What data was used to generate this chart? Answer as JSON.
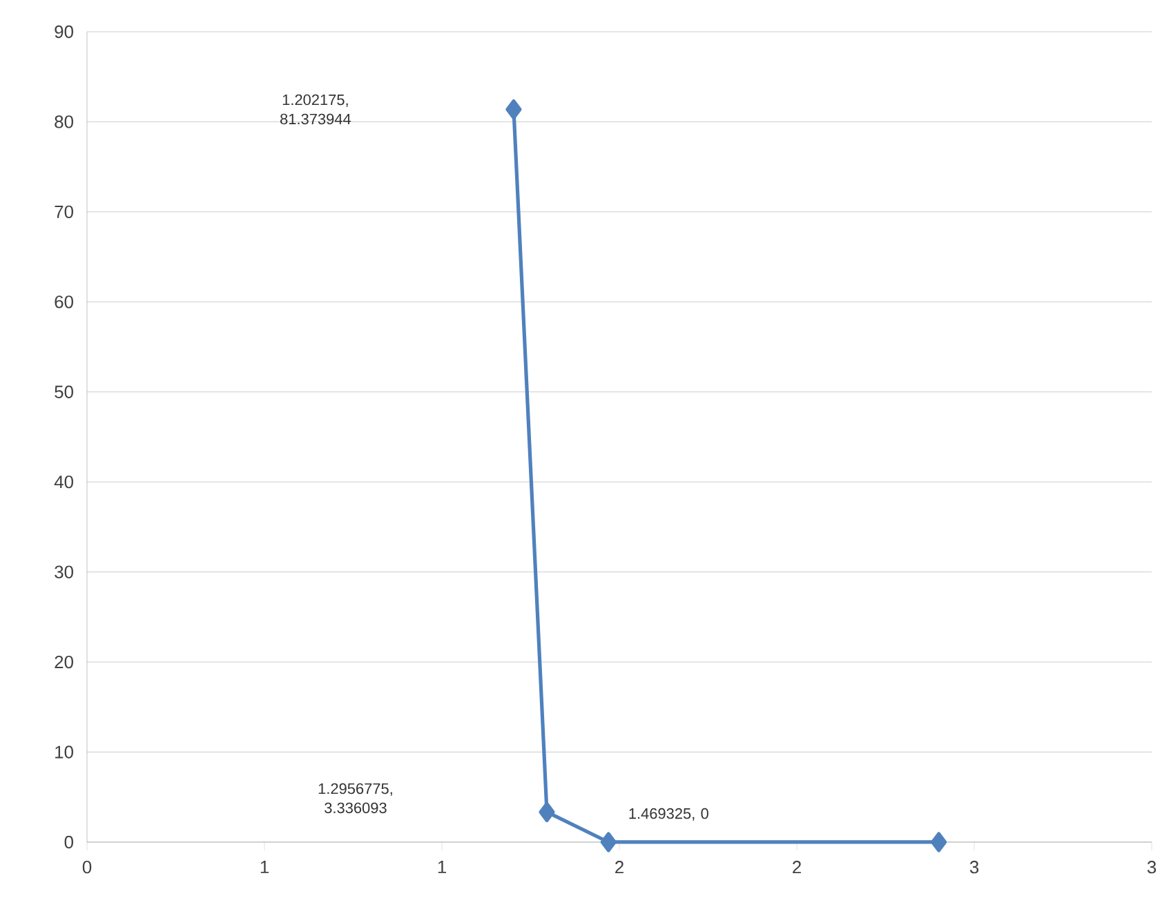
{
  "chart_data": {
    "type": "line",
    "x": [
      1.202175,
      1.2956775,
      1.469325,
      2.4
    ],
    "series": [
      {
        "color": "#4f81bd",
        "values": [
          81.373944,
          3.336093,
          0,
          0
        ]
      }
    ],
    "xlim": [
      0,
      3
    ],
    "ylim": [
      0,
      90
    ],
    "xticks": [
      {
        "value": 0,
        "label": "0"
      },
      {
        "value": 0.5,
        "label": "1"
      },
      {
        "value": 1,
        "label": "1"
      },
      {
        "value": 1.5,
        "label": "2"
      },
      {
        "value": 2,
        "label": "2"
      },
      {
        "value": 2.5,
        "label": "3"
      },
      {
        "value": 3,
        "label": "3"
      }
    ],
    "yticks": [
      0,
      10,
      20,
      30,
      40,
      50,
      60,
      70,
      80,
      90
    ],
    "grid": "y",
    "marker": "diamond",
    "line_style": "solid",
    "annotations": [
      "1.202175, 81.373944",
      "1.2956775, 3.336093",
      "1.469325, 0"
    ]
  }
}
